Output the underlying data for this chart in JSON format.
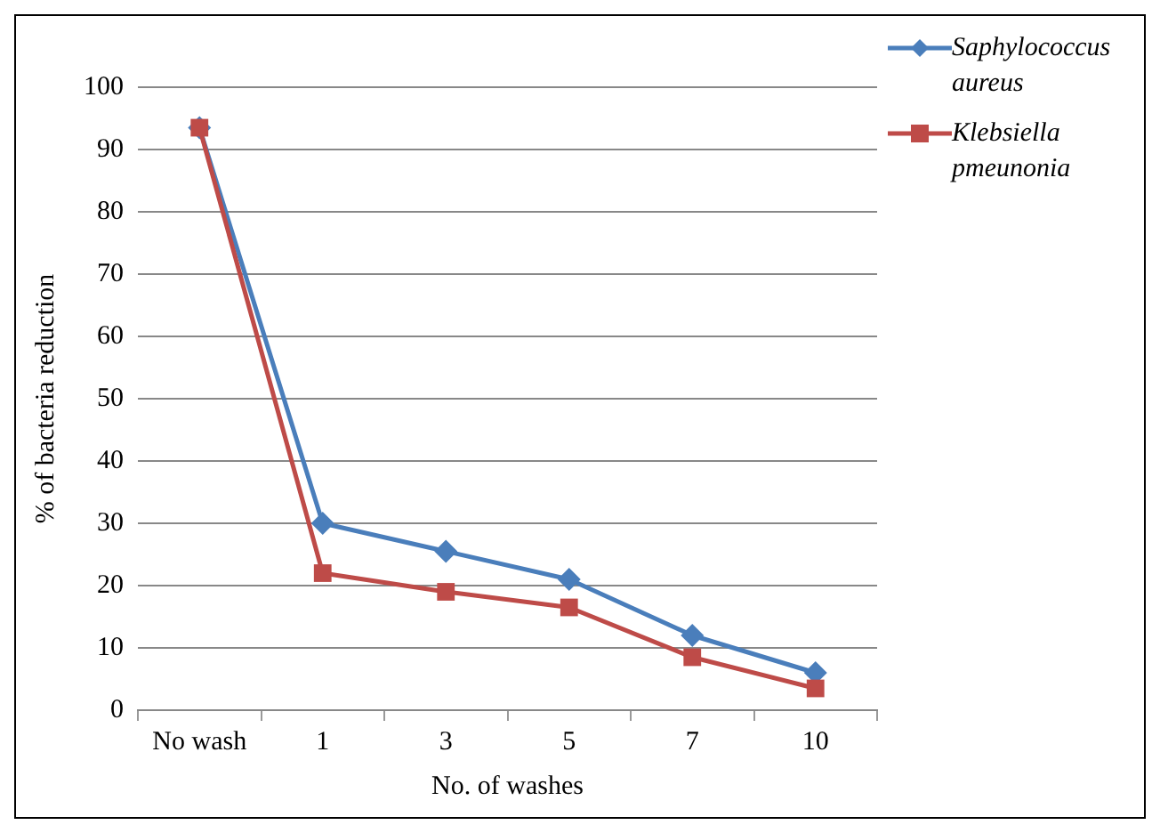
{
  "chart_data": {
    "type": "line",
    "xlabel": "No. of washes",
    "ylabel": "% of bacteria reduction",
    "categories": [
      "No wash",
      "1",
      "3",
      "5",
      "7",
      "10"
    ],
    "series": [
      {
        "name": "Saphylococcus aureus",
        "color": "#4a7ebb",
        "marker": "diamond",
        "values": [
          93.5,
          30,
          25.5,
          21,
          12,
          6
        ]
      },
      {
        "name": "Klebsiella pmeunonia",
        "color": "#be4b48",
        "marker": "square",
        "values": [
          93.5,
          22,
          19,
          16.5,
          8.5,
          3.5
        ]
      }
    ],
    "ylim": [
      0,
      100
    ],
    "yticks": [
      0,
      10,
      20,
      30,
      40,
      50,
      60,
      70,
      80,
      90,
      100
    ],
    "grid": "y",
    "legend": "top right"
  }
}
